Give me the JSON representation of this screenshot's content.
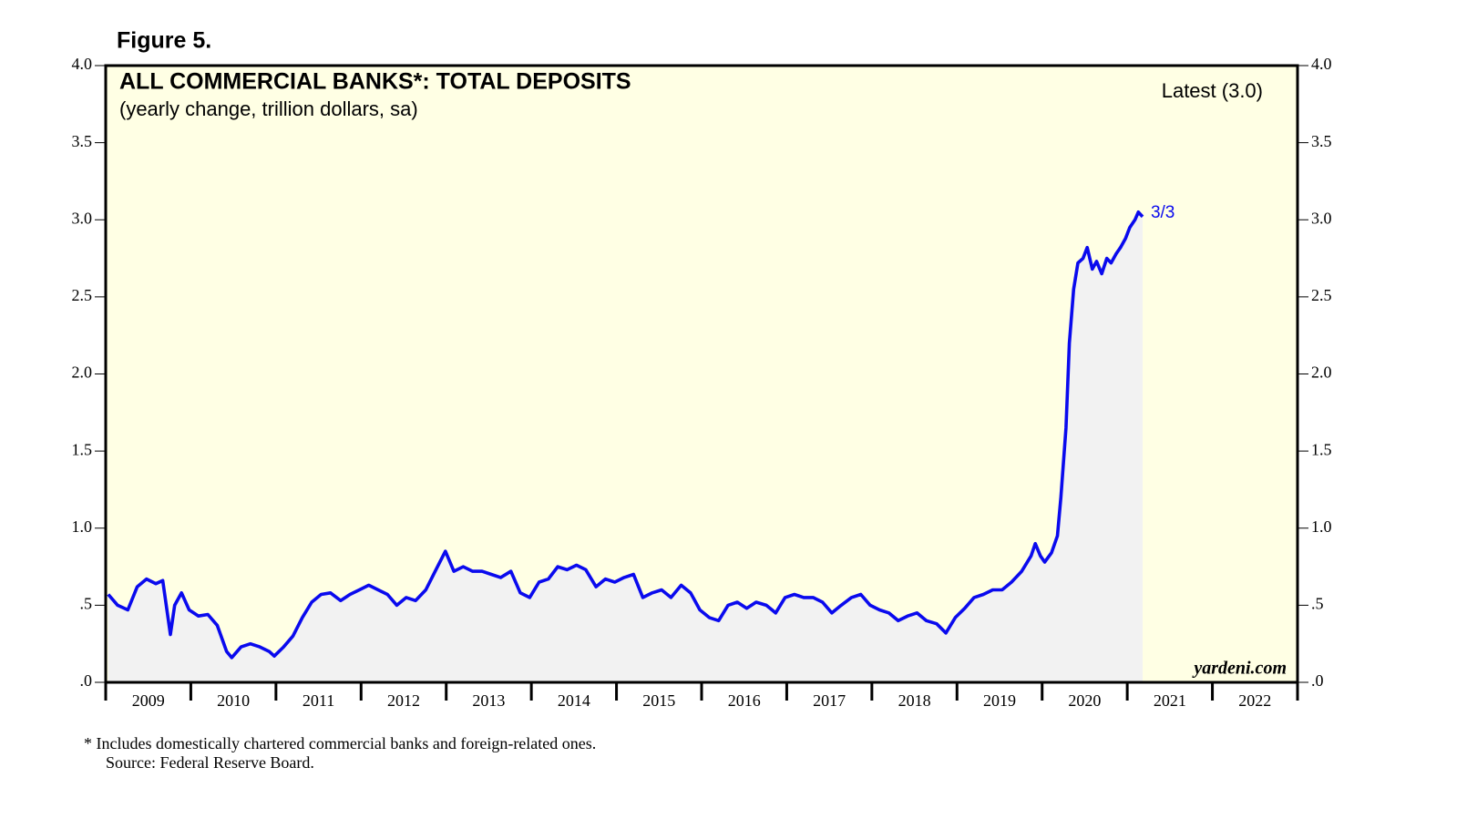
{
  "chart_data": {
    "type": "line",
    "figure_label": "Figure 5.",
    "title": "ALL COMMERCIAL BANKS*: TOTAL DEPOSITS",
    "subtitle": "(yearly change, trillion dollars, sa)",
    "legend_text": "Latest (3.0)",
    "end_annotation": "3/3",
    "watermark": "yardeni.com",
    "footnotes": [
      "*  Includes domestically chartered commercial banks and foreign-related ones.",
      "Source: Federal Reserve Board."
    ],
    "xlim": [
      2009,
      2023
    ],
    "xticks": [
      2009,
      2010,
      2011,
      2012,
      2013,
      2014,
      2015,
      2016,
      2017,
      2018,
      2019,
      2020,
      2021,
      2022,
      2023
    ],
    "xtick_labels": [
      "2009",
      "2010",
      "2011",
      "2012",
      "2013",
      "2014",
      "2015",
      "2016",
      "2017",
      "2018",
      "2019",
      "2020",
      "2021",
      "2022"
    ],
    "ylim": [
      0,
      4
    ],
    "yticks": [
      {
        "value": 0,
        "label": ".0"
      },
      {
        "value": 0.5,
        "label": ".5"
      },
      {
        "value": 1,
        "label": "1.0"
      },
      1.5,
      {
        "value": 2,
        "label": "2.0"
      },
      2.5,
      {
        "value": 3,
        "label": "3.0"
      },
      3.5,
      {
        "value": 4,
        "label": "4.0"
      }
    ],
    "background": "#ffffe4",
    "area_color": "#f2f2f2",
    "series": [
      {
        "name": "Total deposits",
        "color": "#0a0aee",
        "x": [
          2009.03,
          2009.14,
          2009.26,
          2009.37,
          2009.48,
          2009.59,
          2009.67,
          2009.76,
          2009.81,
          2009.89,
          2009.98,
          2010.09,
          2010.2,
          2010.31,
          2010.42,
          2010.48,
          2010.59,
          2010.7,
          2010.81,
          2010.92,
          2010.98,
          2011.09,
          2011.2,
          2011.31,
          2011.42,
          2011.53,
          2011.64,
          2011.76,
          2011.87,
          2011.98,
          2012.09,
          2012.2,
          2012.31,
          2012.42,
          2012.53,
          2012.64,
          2012.76,
          2012.87,
          2012.99,
          2013.09,
          2013.2,
          2013.31,
          2013.42,
          2013.53,
          2013.64,
          2013.76,
          2013.87,
          2013.98,
          2014.09,
          2014.2,
          2014.31,
          2014.42,
          2014.53,
          2014.64,
          2014.76,
          2014.87,
          2014.98,
          2015.09,
          2015.2,
          2015.31,
          2015.42,
          2015.53,
          2015.64,
          2015.76,
          2015.87,
          2015.98,
          2016.09,
          2016.2,
          2016.31,
          2016.42,
          2016.53,
          2016.64,
          2016.76,
          2016.87,
          2016.98,
          2017.09,
          2017.2,
          2017.31,
          2017.42,
          2017.53,
          2017.64,
          2017.76,
          2017.87,
          2017.98,
          2018.09,
          2018.2,
          2018.31,
          2018.42,
          2018.53,
          2018.64,
          2018.76,
          2018.87,
          2018.98,
          2019.09,
          2019.2,
          2019.31,
          2019.42,
          2019.53,
          2019.64,
          2019.76,
          2019.87,
          2019.92,
          2019.98,
          2020.03,
          2020.11,
          2020.18,
          2020.22,
          2020.28,
          2020.32,
          2020.37,
          2020.42,
          2020.48,
          2020.53,
          2020.59,
          2020.64,
          2020.7,
          2020.76,
          2020.81,
          2020.87,
          2020.92,
          2020.98,
          2021.03,
          2021.09,
          2021.13,
          2021.18
        ],
        "values": [
          0.57,
          0.5,
          0.47,
          0.62,
          0.67,
          0.64,
          0.66,
          0.31,
          0.5,
          0.58,
          0.47,
          0.43,
          0.44,
          0.37,
          0.2,
          0.16,
          0.23,
          0.25,
          0.23,
          0.2,
          0.17,
          0.23,
          0.3,
          0.42,
          0.52,
          0.57,
          0.58,
          0.53,
          0.57,
          0.6,
          0.63,
          0.6,
          0.57,
          0.5,
          0.55,
          0.53,
          0.6,
          0.72,
          0.85,
          0.72,
          0.75,
          0.72,
          0.72,
          0.7,
          0.68,
          0.72,
          0.58,
          0.55,
          0.65,
          0.67,
          0.75,
          0.73,
          0.76,
          0.73,
          0.62,
          0.67,
          0.65,
          0.68,
          0.7,
          0.55,
          0.58,
          0.6,
          0.55,
          0.63,
          0.58,
          0.47,
          0.42,
          0.4,
          0.5,
          0.52,
          0.48,
          0.52,
          0.5,
          0.45,
          0.55,
          0.57,
          0.55,
          0.55,
          0.52,
          0.45,
          0.5,
          0.55,
          0.57,
          0.5,
          0.47,
          0.45,
          0.4,
          0.43,
          0.45,
          0.4,
          0.38,
          0.32,
          0.42,
          0.48,
          0.55,
          0.57,
          0.6,
          0.6,
          0.65,
          0.72,
          0.82,
          0.9,
          0.82,
          0.78,
          0.84,
          0.95,
          1.2,
          1.65,
          2.2,
          2.55,
          2.72,
          2.75,
          2.82,
          2.68,
          2.73,
          2.65,
          2.75,
          2.72,
          2.78,
          2.82,
          2.88,
          2.95,
          3.0,
          3.05,
          3.02
        ]
      }
    ]
  }
}
